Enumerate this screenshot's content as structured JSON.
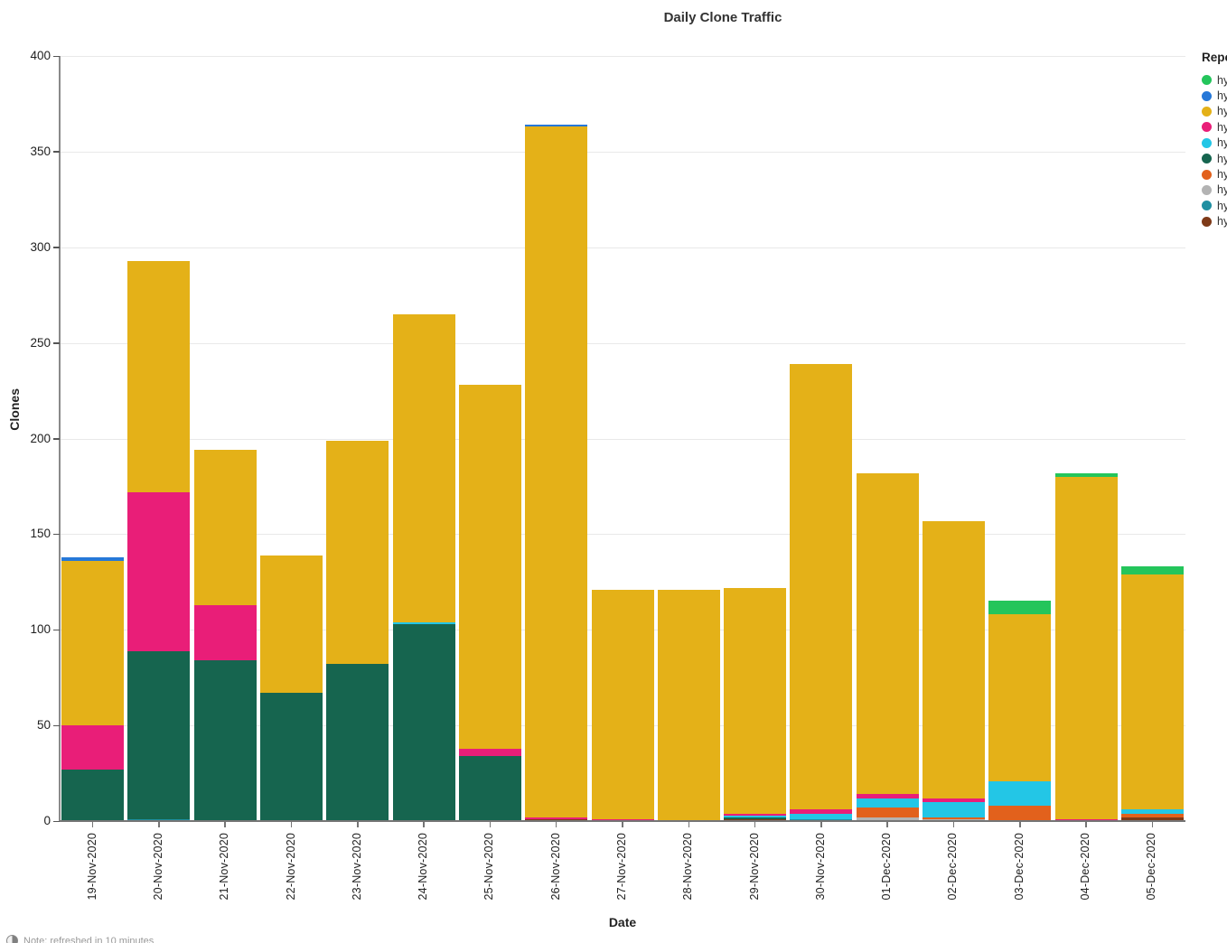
{
  "figure": {
    "title": "Daily Clone Traffic",
    "footer_note": "Note: refreshed in 10 minutes"
  },
  "chart_data": {
    "type": "bar",
    "stacked": true,
    "title": "Daily Clone Traffic",
    "xlabel": "Date",
    "ylabel": "Clones",
    "ylim": [
      0,
      400
    ],
    "yticks": [
      0,
      50,
      100,
      150,
      200,
      250,
      300,
      350,
      400
    ],
    "grid": true,
    "legend_position": "right-clipped",
    "palette": {
      "green": "#24C55B",
      "blue": "#2678D8",
      "gold": "#E4B118",
      "pink": "#E91E78",
      "cyan": "#23C6E6",
      "darkgreen": "#16654F",
      "orange": "#E2611C",
      "gray": "#B3B3B3",
      "teal": "#1F8FA1",
      "brown": "#7E3A18"
    },
    "legend": {
      "header": "Repo",
      "entries": [
        {
          "label": "hy",
          "color": "green"
        },
        {
          "label": "hy",
          "color": "blue"
        },
        {
          "label": "hy",
          "color": "gold"
        },
        {
          "label": "hy",
          "color": "pink"
        },
        {
          "label": "hy",
          "color": "cyan"
        },
        {
          "label": "hy",
          "color": "darkgreen"
        },
        {
          "label": "hy",
          "color": "orange"
        },
        {
          "label": "hy",
          "color": "gray"
        },
        {
          "label": "hy",
          "color": "teal"
        },
        {
          "label": "hy",
          "color": "brown"
        }
      ]
    },
    "categories": [
      "19-Nov-2020",
      "20-Nov-2020",
      "21-Nov-2020",
      "22-Nov-2020",
      "23-Nov-2020",
      "24-Nov-2020",
      "25-Nov-2020",
      "26-Nov-2020",
      "27-Nov-2020",
      "28-Nov-2020",
      "29-Nov-2020",
      "30-Nov-2020",
      "01-Dec-2020",
      "02-Dec-2020",
      "03-Dec-2020",
      "04-Dec-2020",
      "05-Dec-2020"
    ],
    "bars": [
      {
        "date": "19-Nov-2020",
        "total": 138,
        "segments": [
          [
            "darkgreen",
            27
          ],
          [
            "pink",
            23
          ],
          [
            "gold",
            86
          ],
          [
            "blue",
            2
          ]
        ]
      },
      {
        "date": "20-Nov-2020",
        "total": 293,
        "segments": [
          [
            "teal",
            1
          ],
          [
            "darkgreen",
            88
          ],
          [
            "pink",
            83
          ],
          [
            "gold",
            121
          ]
        ]
      },
      {
        "date": "21-Nov-2020",
        "total": 194,
        "segments": [
          [
            "darkgreen",
            84
          ],
          [
            "pink",
            29
          ],
          [
            "gold",
            81
          ]
        ]
      },
      {
        "date": "22-Nov-2020",
        "total": 139,
        "segments": [
          [
            "darkgreen",
            67
          ],
          [
            "gold",
            72
          ]
        ]
      },
      {
        "date": "23-Nov-2020",
        "total": 199,
        "segments": [
          [
            "darkgreen",
            82
          ],
          [
            "gold",
            117
          ]
        ]
      },
      {
        "date": "24-Nov-2020",
        "total": 265,
        "segments": [
          [
            "darkgreen",
            103
          ],
          [
            "cyan",
            1
          ],
          [
            "gold",
            161
          ]
        ]
      },
      {
        "date": "25-Nov-2020",
        "total": 228,
        "segments": [
          [
            "darkgreen",
            34
          ],
          [
            "pink",
            4
          ],
          [
            "gold",
            190
          ]
        ]
      },
      {
        "date": "26-Nov-2020",
        "total": 364,
        "segments": [
          [
            "brown",
            1
          ],
          [
            "pink",
            1
          ],
          [
            "gold",
            361
          ],
          [
            "blue",
            1
          ]
        ]
      },
      {
        "date": "27-Nov-2020",
        "total": 121,
        "segments": [
          [
            "pink",
            1
          ],
          [
            "gold",
            120
          ]
        ]
      },
      {
        "date": "28-Nov-2020",
        "total": 121,
        "segments": [
          [
            "gold",
            121
          ]
        ]
      },
      {
        "date": "29-Nov-2020",
        "total": 122,
        "segments": [
          [
            "brown",
            1
          ],
          [
            "darkgreen",
            1
          ],
          [
            "cyan",
            1
          ],
          [
            "pink",
            1
          ],
          [
            "gold",
            118
          ]
        ]
      },
      {
        "date": "30-Nov-2020",
        "total": 239,
        "segments": [
          [
            "teal",
            1
          ],
          [
            "cyan",
            3
          ],
          [
            "pink",
            2
          ],
          [
            "gold",
            233
          ]
        ]
      },
      {
        "date": "01-Dec-2020",
        "total": 182,
        "segments": [
          [
            "gray",
            2
          ],
          [
            "orange",
            5
          ],
          [
            "cyan",
            5
          ],
          [
            "pink",
            2
          ],
          [
            "gold",
            168
          ]
        ]
      },
      {
        "date": "02-Dec-2020",
        "total": 157,
        "segments": [
          [
            "gray",
            1
          ],
          [
            "orange",
            1
          ],
          [
            "cyan",
            8
          ],
          [
            "pink",
            2
          ],
          [
            "gold",
            145
          ]
        ]
      },
      {
        "date": "03-Dec-2020",
        "total": 115,
        "segments": [
          [
            "orange",
            8
          ],
          [
            "cyan",
            13
          ],
          [
            "gold",
            87
          ],
          [
            "green",
            7
          ]
        ]
      },
      {
        "date": "04-Dec-2020",
        "total": 182,
        "segments": [
          [
            "pink",
            1
          ],
          [
            "gold",
            179
          ],
          [
            "green",
            2
          ]
        ]
      },
      {
        "date": "05-Dec-2020",
        "total": 133,
        "segments": [
          [
            "brown",
            2
          ],
          [
            "orange",
            2
          ],
          [
            "cyan",
            2
          ],
          [
            "gold",
            123
          ],
          [
            "green",
            4
          ]
        ]
      }
    ]
  }
}
